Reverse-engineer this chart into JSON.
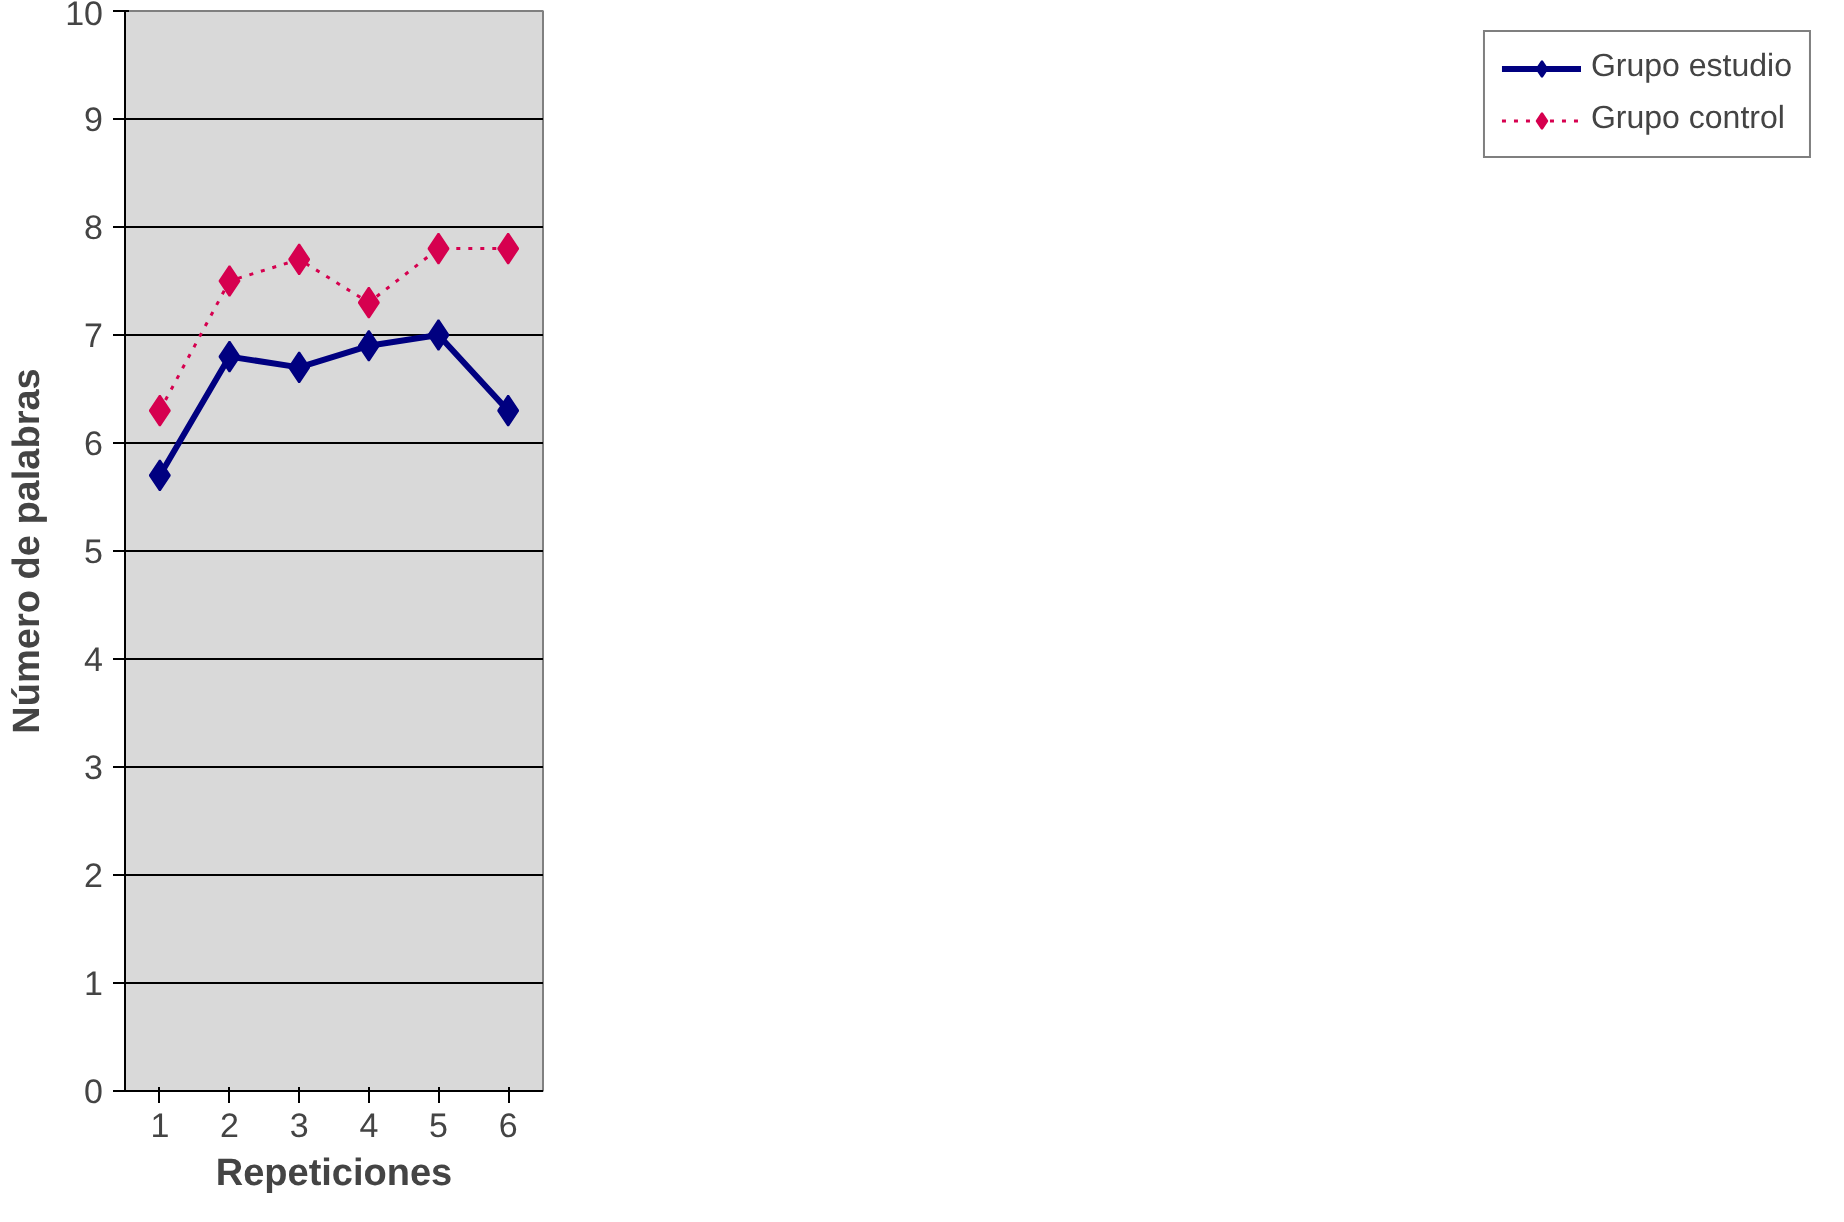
{
  "chart_data": {
    "type": "line",
    "xlabel": "Repeticiones",
    "ylabel": "Número de palabras",
    "categories": [
      "1",
      "2",
      "3",
      "4",
      "5",
      "6"
    ],
    "series": [
      {
        "name": "Grupo estudio",
        "color": "#000080",
        "line_style": "solid",
        "values": [
          5.7,
          6.8,
          6.7,
          6.9,
          7.0,
          6.3
        ]
      },
      {
        "name": "Grupo control",
        "color": "#d6004f",
        "line_style": "dotted",
        "values": [
          6.3,
          7.5,
          7.7,
          7.3,
          7.8,
          7.8
        ]
      }
    ],
    "ylim": [
      0,
      10
    ],
    "yticks": [
      0,
      1,
      2,
      3,
      4,
      5,
      6,
      7,
      8,
      9,
      10
    ],
    "grid": "y",
    "legend": "right",
    "marker": "diamond"
  }
}
